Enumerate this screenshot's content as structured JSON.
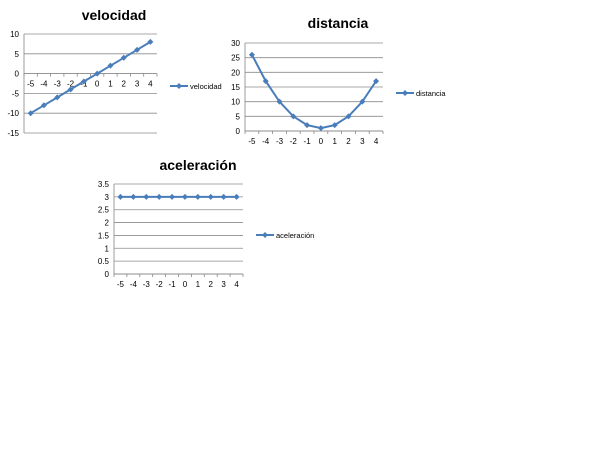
{
  "colors": {
    "series": "#4A7EBB",
    "grid": "#8C8C8C",
    "axis": "#868686"
  },
  "chart_data": [
    {
      "type": "line",
      "title": "velocidad",
      "x": [
        -5,
        -4,
        -3,
        -2,
        -1,
        0,
        1,
        2,
        3,
        4
      ],
      "x_tick_labels": [
        "-5",
        "-4",
        "-3",
        "-2",
        "-1",
        "0",
        "1",
        "2",
        "3",
        "4"
      ],
      "series": [
        {
          "name": "velocidad",
          "values": [
            -10,
            -8,
            -6,
            -4,
            -2,
            0,
            2,
            4,
            6,
            8
          ]
        }
      ],
      "ylim": [
        -15,
        10
      ],
      "y_ticks": [
        -15,
        -10,
        -5,
        0,
        5,
        10
      ],
      "y_tick_labels": [
        "-15",
        "-10",
        "-5",
        "0",
        "5",
        "10"
      ],
      "grid": true,
      "legend": "right"
    },
    {
      "type": "line",
      "title": "distancia",
      "x": [
        -5,
        -4,
        -3,
        -2,
        -1,
        0,
        1,
        2,
        3,
        4
      ],
      "x_tick_labels": [
        "-5",
        "-4",
        "-3",
        "-2",
        "-1",
        "0",
        "1",
        "2",
        "3",
        "4"
      ],
      "series": [
        {
          "name": "distancia",
          "values": [
            26,
            17,
            10,
            5,
            2,
            1,
            2,
            5,
            10,
            17
          ]
        }
      ],
      "ylim": [
        0,
        30
      ],
      "y_ticks": [
        0,
        5,
        10,
        15,
        20,
        25,
        30
      ],
      "y_tick_labels": [
        "0",
        "5",
        "10",
        "15",
        "20",
        "25",
        "30"
      ],
      "grid": true,
      "legend": "right"
    },
    {
      "type": "line",
      "title": "aceleración",
      "x": [
        -5,
        -4,
        -3,
        -2,
        -1,
        0,
        1,
        2,
        3,
        4
      ],
      "x_tick_labels": [
        "-5",
        "-4",
        "-3",
        "-2",
        "-1",
        "0",
        "1",
        "2",
        "3",
        "4"
      ],
      "series": [
        {
          "name": "aceleración",
          "values": [
            3,
            3,
            3,
            3,
            3,
            3,
            3,
            3,
            3,
            3
          ]
        }
      ],
      "ylim": [
        0,
        3.5
      ],
      "y_ticks": [
        0,
        0.5,
        1,
        1.5,
        2,
        2.5,
        3,
        3.5
      ],
      "y_tick_labels": [
        "0",
        "0.5",
        "1",
        "1.5",
        "2",
        "2.5",
        "3",
        "3.5"
      ],
      "grid": true,
      "legend": "right"
    }
  ]
}
